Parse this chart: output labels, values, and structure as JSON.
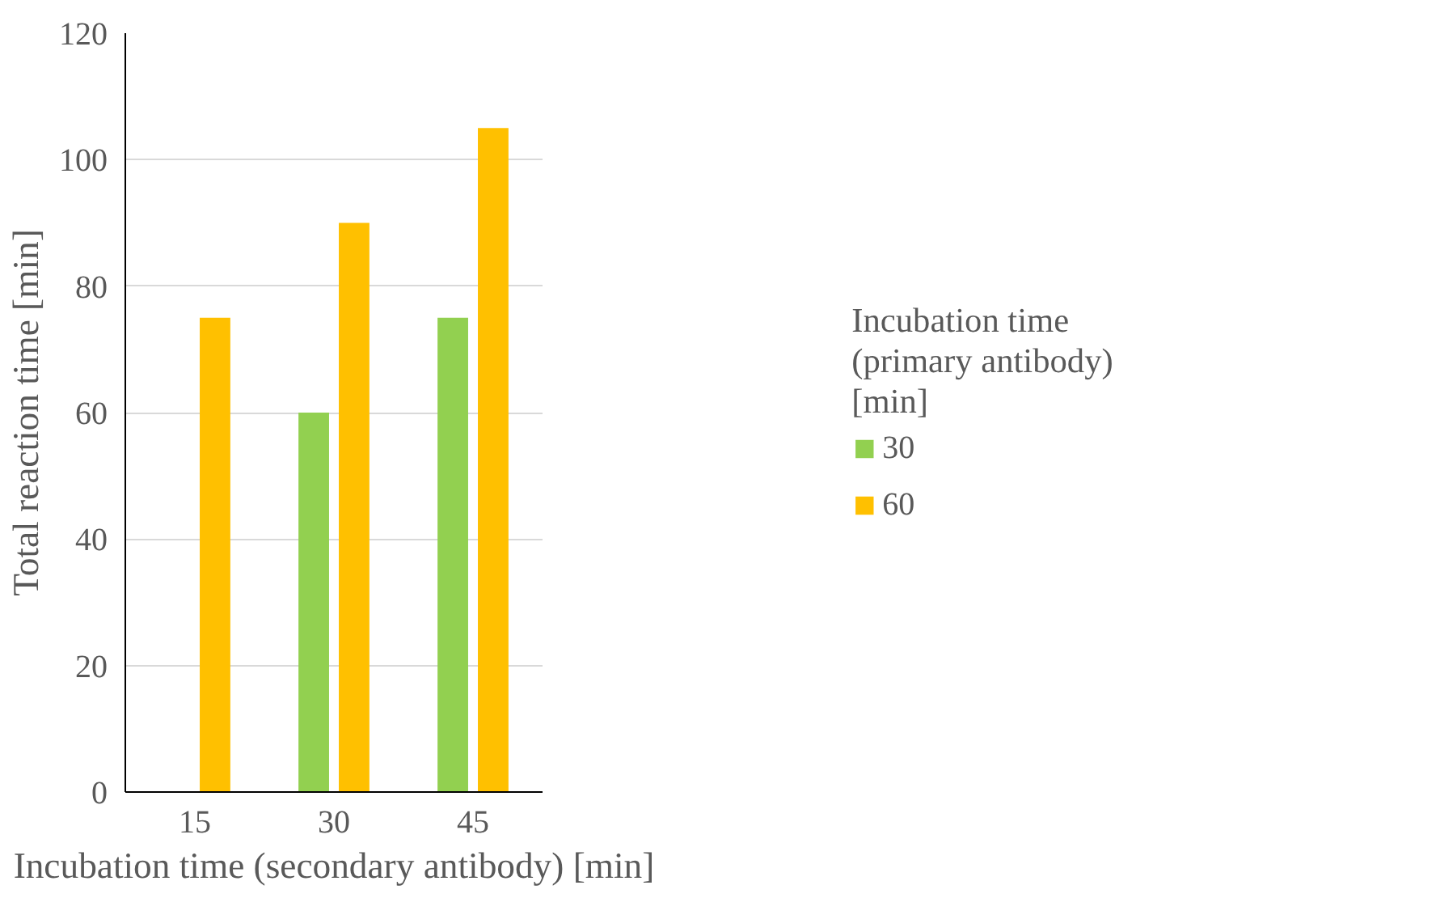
{
  "chart_data": {
    "type": "bar",
    "categories": [
      "15",
      "30",
      "45"
    ],
    "xlabel": "Incubation time (secondary antibody) [min]",
    "ylabel": "Total reaction time [min]",
    "legend_title": "Incubation time\n(primary antibody)\n[min]",
    "series": [
      {
        "name": "30",
        "color": "#92d050",
        "values": [
          null,
          60,
          75
        ]
      },
      {
        "name": "60",
        "color": "#ffc000",
        "values": [
          75,
          90,
          105
        ]
      }
    ],
    "ylim": [
      0,
      120
    ],
    "yticks": [
      0,
      20,
      40,
      60,
      80,
      100,
      120
    ],
    "grid": "y",
    "legend": "right"
  }
}
